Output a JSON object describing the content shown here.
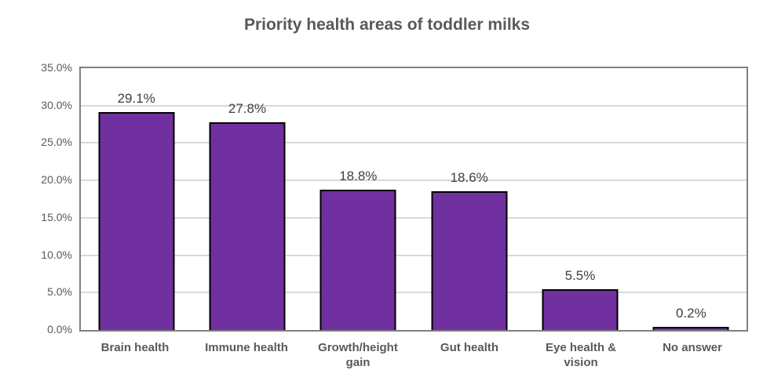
{
  "chart_data": {
    "type": "bar",
    "title": "Priority health areas of toddler milks",
    "categories": [
      "Brain health",
      "Immune health",
      "Growth/height gain",
      "Gut health",
      "Eye health & vision",
      "No answer"
    ],
    "values": [
      29.1,
      27.8,
      18.8,
      18.6,
      5.5,
      0.2
    ],
    "data_labels": [
      "29.1%",
      "27.8%",
      "18.8%",
      "18.6%",
      "5.5%",
      "0.2%"
    ],
    "xlabel": "",
    "ylabel": "",
    "ylim": [
      0,
      35
    ],
    "ytick_step": 5,
    "ytick_labels": [
      "0.0%",
      "5.0%",
      "10.0%",
      "15.0%",
      "20.0%",
      "25.0%",
      "30.0%",
      "35.0%"
    ],
    "grid": true,
    "legend_position": "none",
    "colors": {
      "bar_fill": "#7030A0",
      "bar_border": "#000000",
      "gridline": "#D9D9D9",
      "plot_border": "#808080",
      "title_text": "#595959",
      "axis_text": "#595959",
      "data_label_text": "#404040",
      "background": "#FFFFFF"
    }
  }
}
